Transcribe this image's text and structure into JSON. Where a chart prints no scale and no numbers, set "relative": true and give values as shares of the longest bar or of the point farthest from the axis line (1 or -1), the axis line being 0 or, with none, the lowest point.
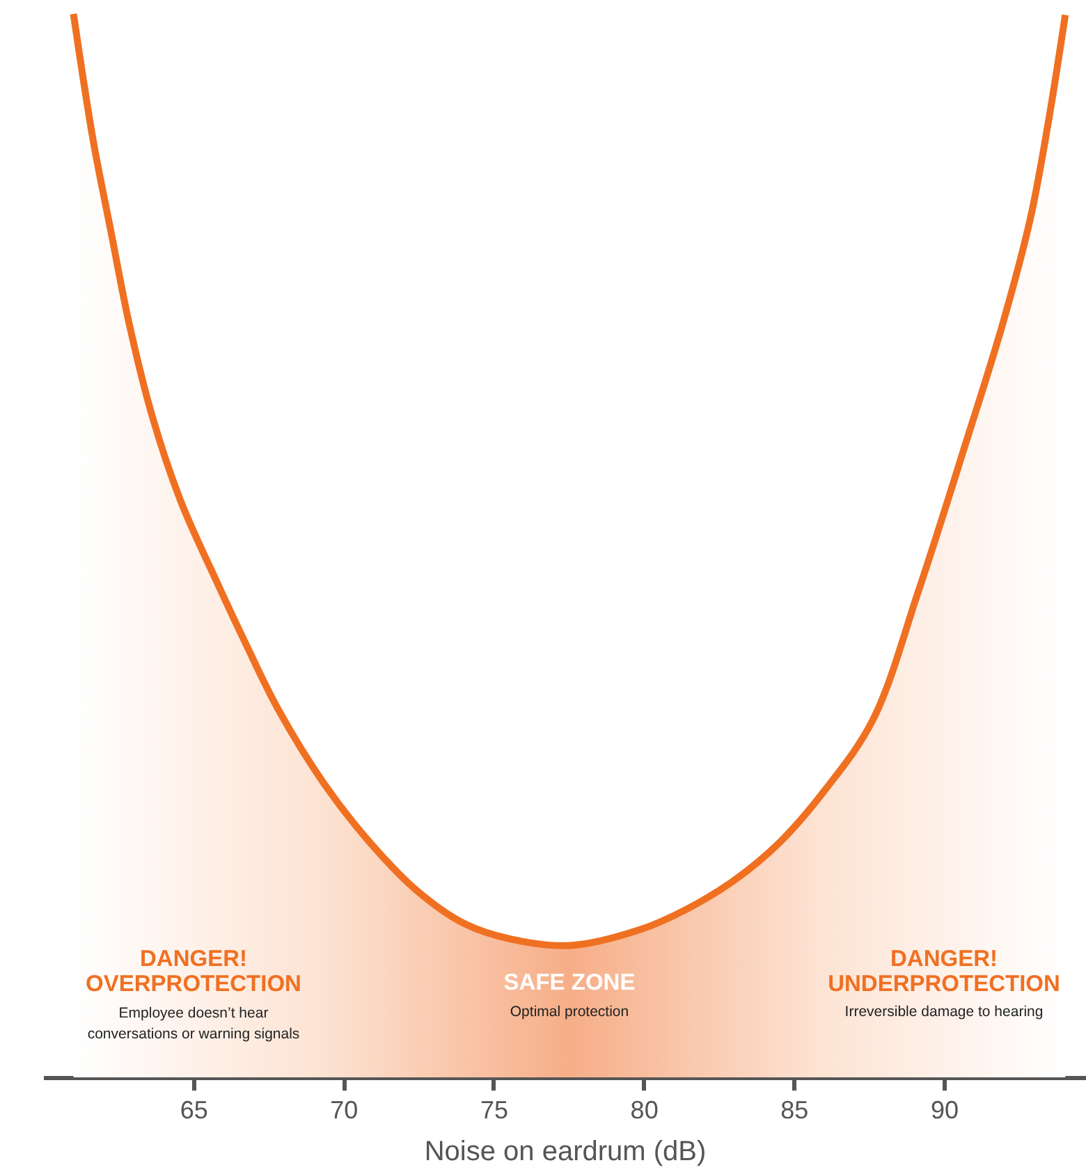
{
  "chart_data": {
    "type": "area",
    "relative": true,
    "xlabel": "Noise on eardrum (dB)",
    "xlim": [
      60,
      94.73
    ],
    "xticks": [
      65,
      70,
      75,
      80,
      85,
      90
    ],
    "grid": false,
    "series": [
      {
        "color": "#f07022",
        "x": [
          61.01,
          61.66,
          62.26,
          62.87,
          63.65,
          64.58,
          65.83,
          66.76,
          67.83,
          69.36,
          70.94,
          72.47,
          74.0,
          75.58,
          77.57,
          79.89,
          81.42,
          83.0,
          84.53,
          86.06,
          87.63,
          89.17,
          90.7,
          91.95,
          92.88,
          93.48,
          94.04
        ],
        "values": [
          1.0,
          0.882,
          0.795,
          0.708,
          0.62,
          0.542,
          0.463,
          0.407,
          0.346,
          0.276,
          0.219,
          0.175,
          0.145,
          0.13,
          0.124,
          0.139,
          0.158,
          0.185,
          0.221,
          0.271,
          0.336,
          0.459,
          0.594,
          0.708,
          0.808,
          0.899,
          0.999
        ]
      }
    ],
    "annotations": [
      "DANGER!\nOVERPROTECTION",
      "Employee doesn’t hear\nconversations or warning signals",
      "SAFE ZONE",
      "Optimal protection",
      "DANGER!\nUNDERPROTECTION",
      "Irreversible damage to hearing"
    ]
  }
}
